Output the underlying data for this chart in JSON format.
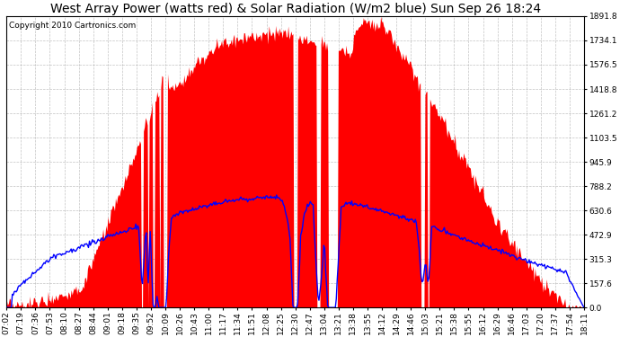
{
  "title": "West Array Power (watts red) & Solar Radiation (W/m2 blue) Sun Sep 26 18:24",
  "copyright_text": "Copyright 2010 Cartronics.com",
  "background_color": "#ffffff",
  "plot_bg_color": "#ffffff",
  "grid_color": "#aaaaaa",
  "y_max": 1891.8,
  "y_min": 0.0,
  "y_ticks": [
    0.0,
    157.6,
    315.3,
    472.9,
    630.6,
    788.2,
    945.9,
    1103.5,
    1261.2,
    1418.8,
    1576.5,
    1734.1,
    1891.8
  ],
  "x_labels": [
    "07:02",
    "07:19",
    "07:36",
    "07:53",
    "08:10",
    "08:27",
    "08:44",
    "09:01",
    "09:18",
    "09:35",
    "09:52",
    "10:09",
    "10:26",
    "10:43",
    "11:00",
    "11:17",
    "11:34",
    "11:51",
    "12:08",
    "12:25",
    "12:30",
    "12:47",
    "13:04",
    "13:21",
    "13:38",
    "13:55",
    "14:12",
    "14:29",
    "14:46",
    "15:03",
    "15:21",
    "15:38",
    "15:55",
    "16:12",
    "16:29",
    "16:46",
    "17:03",
    "17:20",
    "17:37",
    "17:54",
    "18:11"
  ],
  "red_fill_color": "#ff0000",
  "blue_line_color": "#0000ff",
  "title_fontsize": 10,
  "axis_fontsize": 6.5,
  "copyright_fontsize": 6.5,
  "figwidth": 6.9,
  "figheight": 3.75,
  "dpi": 100
}
